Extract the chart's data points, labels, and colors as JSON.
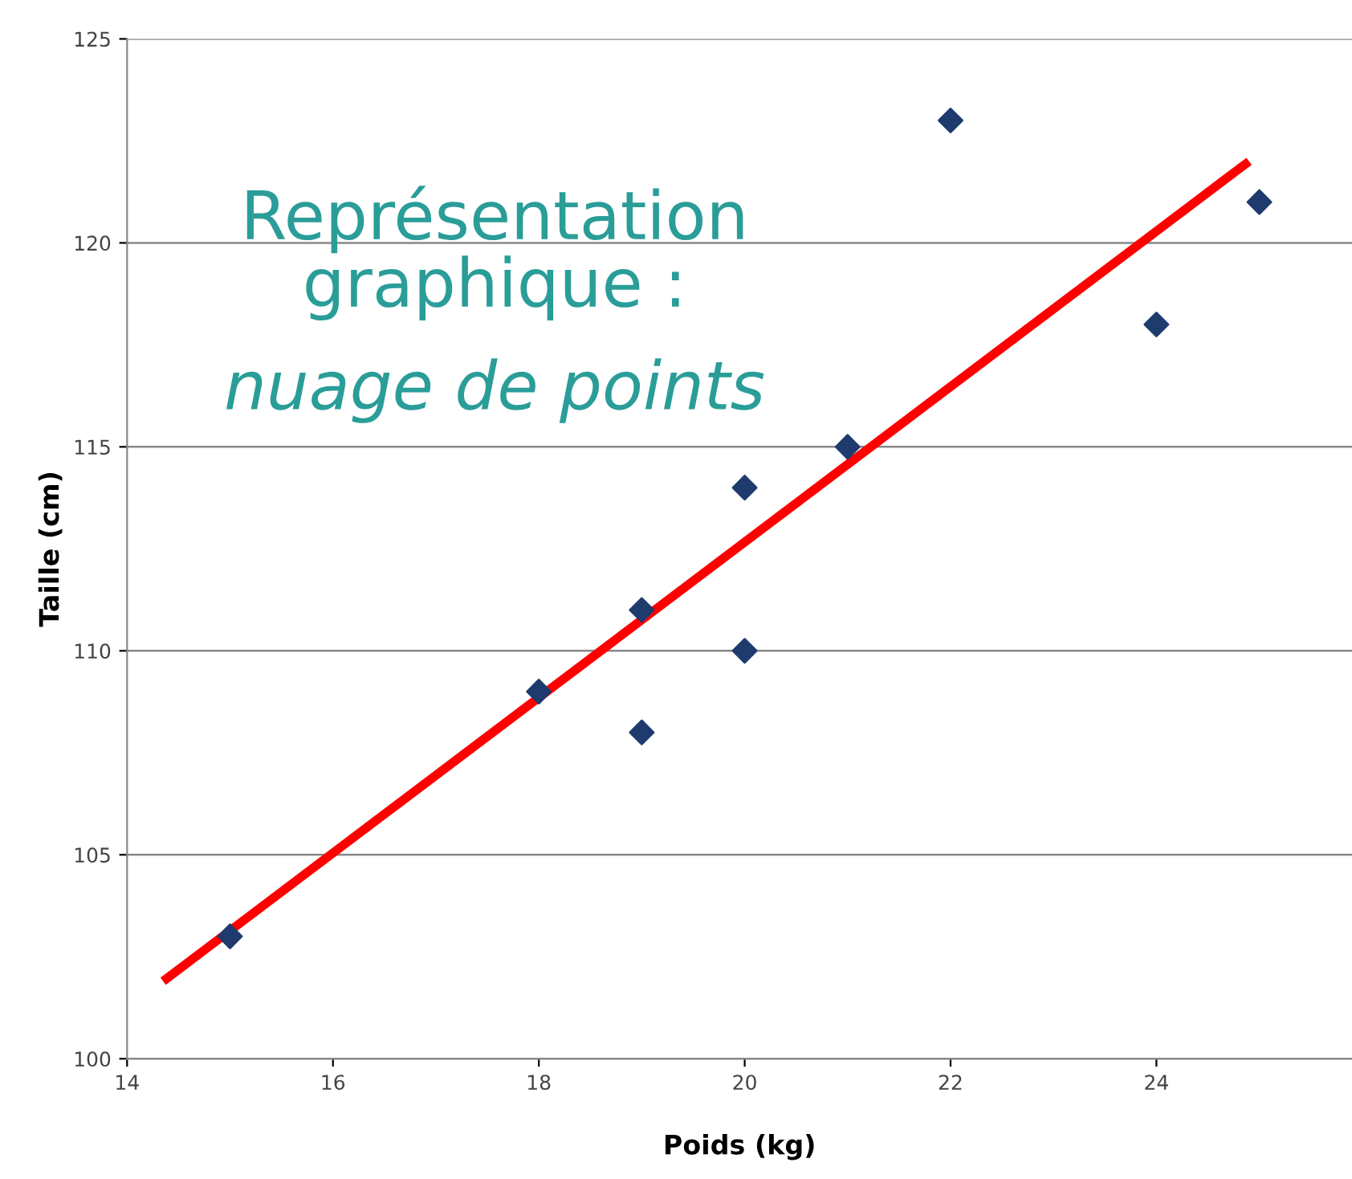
{
  "chart_data": {
    "type": "scatter",
    "xlabel": "Poids (kg)",
    "ylabel": "Taille (cm)",
    "annotations": [
      "Représentation\ngraphique :",
      "nuage de points"
    ],
    "series": [
      {
        "color": "#1f3b6e",
        "marker": "diamond",
        "x": [
          15,
          18,
          19,
          19,
          20,
          20,
          21,
          22,
          24,
          25
        ],
        "values": [
          103,
          109,
          111,
          108,
          114,
          110,
          115,
          123,
          118,
          121
        ]
      },
      {
        "type": "line",
        "color": "#ff0000",
        "marker": "none",
        "line_style": "solid",
        "x": [
          14.35,
          24.9
        ],
        "values": [
          101.9,
          122.0
        ]
      }
    ],
    "xlim": [
      14,
      25.9
    ],
    "xticks": [
      14,
      16,
      18,
      20,
      22,
      24
    ],
    "ylim": [
      100,
      125
    ],
    "yticks": [
      100,
      105,
      110,
      115,
      120,
      125
    ],
    "grid": "y",
    "legend": false
  }
}
